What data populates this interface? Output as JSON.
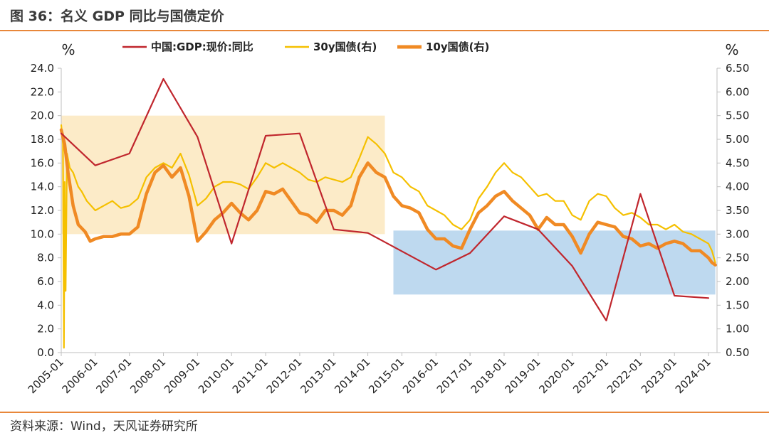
{
  "figure": {
    "title": "图 36：名义 GDP 同比与国债定价",
    "source": "资料来源：Wind，天风证券研究所"
  },
  "colors": {
    "gdp": "#c0262d",
    "y30": "#f5c000",
    "y10": "#f08a24",
    "rule": "#e8873a",
    "zone_high": "#fcebc8",
    "zone_low": "#bed9ef"
  },
  "chart_data": {
    "type": "line",
    "left_axis": {
      "unit": "%",
      "min": 0,
      "max": 24,
      "step": 2,
      "ticks": [
        "0.0",
        "2.0",
        "4.0",
        "6.0",
        "8.0",
        "10.0",
        "12.0",
        "14.0",
        "16.0",
        "18.0",
        "20.0",
        "22.0",
        "24.0"
      ]
    },
    "right_axis": {
      "unit": "%",
      "min": 0.5,
      "max": 6.5,
      "step": 0.5,
      "ticks": [
        "0.50",
        "1.00",
        "1.50",
        "2.00",
        "2.50",
        "3.00",
        "3.50",
        "4.00",
        "4.50",
        "5.00",
        "5.50",
        "6.00",
        "6.50"
      ]
    },
    "x_axis": {
      "min": 2005.0,
      "max": 2024.25,
      "ticks": [
        "2005-01",
        "2006-01",
        "2007-01",
        "2008-01",
        "2009-01",
        "2010-01",
        "2011-01",
        "2012-01",
        "2013-01",
        "2014-01",
        "2015-01",
        "2016-01",
        "2017-01",
        "2018-01",
        "2019-01",
        "2020-01",
        "2021-01",
        "2022-01",
        "2023-01",
        "2024-01"
      ]
    },
    "legend": {
      "placement": "top-center"
    },
    "shaded_regions": [
      {
        "x": [
          2005.0,
          2014.5
        ],
        "y_left": [
          10.0,
          20.0
        ],
        "color_key": "zone_high"
      },
      {
        "x": [
          2014.75,
          2024.2
        ],
        "y_left": [
          4.9,
          10.3
        ],
        "color_key": "zone_low"
      }
    ],
    "series": [
      {
        "name": "中国:GDP:现价:同比",
        "axis": "left",
        "color_key": "gdp",
        "width": 2.2,
        "points": [
          [
            2005.0,
            18.5
          ],
          [
            2006.0,
            15.8
          ],
          [
            2007.0,
            16.8
          ],
          [
            2008.0,
            23.1
          ],
          [
            2009.0,
            18.2
          ],
          [
            2010.0,
            9.2
          ],
          [
            2011.0,
            18.3
          ],
          [
            2012.0,
            18.5
          ],
          [
            2013.0,
            10.4
          ],
          [
            2014.0,
            10.1
          ],
          [
            2016.0,
            7.0
          ],
          [
            2017.0,
            8.4
          ],
          [
            2018.0,
            11.5
          ],
          [
            2019.0,
            10.4
          ],
          [
            2020.0,
            7.3
          ],
          [
            2021.0,
            2.7
          ],
          [
            2022.0,
            13.4
          ],
          [
            2023.0,
            4.8
          ],
          [
            2024.0,
            4.6
          ]
        ]
      },
      {
        "name": "30y国债(右)",
        "axis": "right",
        "color_key": "y30",
        "width": 2.2,
        "points": [
          [
            2005.0,
            5.3
          ],
          [
            2005.05,
            4.9
          ],
          [
            2005.08,
            0.6
          ],
          [
            2005.1,
            4.1
          ],
          [
            2005.13,
            1.8
          ],
          [
            2005.17,
            4.7
          ],
          [
            2005.25,
            4.4
          ],
          [
            2005.35,
            4.3
          ],
          [
            2005.5,
            4.0
          ],
          [
            2005.6,
            3.9
          ],
          [
            2005.75,
            3.7
          ],
          [
            2006.0,
            3.5
          ],
          [
            2006.25,
            3.6
          ],
          [
            2006.5,
            3.7
          ],
          [
            2006.75,
            3.55
          ],
          [
            2007.0,
            3.6
          ],
          [
            2007.25,
            3.75
          ],
          [
            2007.5,
            4.2
          ],
          [
            2007.75,
            4.4
          ],
          [
            2008.0,
            4.5
          ],
          [
            2008.25,
            4.4
          ],
          [
            2008.5,
            4.7
          ],
          [
            2008.75,
            4.25
          ],
          [
            2009.0,
            3.6
          ],
          [
            2009.25,
            3.75
          ],
          [
            2009.5,
            4.0
          ],
          [
            2009.75,
            4.1
          ],
          [
            2010.0,
            4.1
          ],
          [
            2010.25,
            4.05
          ],
          [
            2010.5,
            3.95
          ],
          [
            2010.75,
            4.2
          ],
          [
            2011.0,
            4.5
          ],
          [
            2011.25,
            4.4
          ],
          [
            2011.5,
            4.5
          ],
          [
            2011.75,
            4.4
          ],
          [
            2012.0,
            4.3
          ],
          [
            2012.25,
            4.15
          ],
          [
            2012.5,
            4.1
          ],
          [
            2012.75,
            4.2
          ],
          [
            2013.0,
            4.15
          ],
          [
            2013.25,
            4.1
          ],
          [
            2013.5,
            4.2
          ],
          [
            2013.75,
            4.6
          ],
          [
            2014.0,
            5.05
          ],
          [
            2014.25,
            4.9
          ],
          [
            2014.5,
            4.7
          ],
          [
            2014.75,
            4.3
          ],
          [
            2015.0,
            4.2
          ],
          [
            2015.25,
            4.0
          ],
          [
            2015.5,
            3.9
          ],
          [
            2015.75,
            3.6
          ],
          [
            2016.0,
            3.5
          ],
          [
            2016.25,
            3.4
          ],
          [
            2016.5,
            3.2
          ],
          [
            2016.75,
            3.1
          ],
          [
            2017.0,
            3.3
          ],
          [
            2017.25,
            3.75
          ],
          [
            2017.5,
            4.0
          ],
          [
            2017.75,
            4.3
          ],
          [
            2018.0,
            4.5
          ],
          [
            2018.25,
            4.3
          ],
          [
            2018.5,
            4.2
          ],
          [
            2018.75,
            4.0
          ],
          [
            2019.0,
            3.8
          ],
          [
            2019.25,
            3.85
          ],
          [
            2019.5,
            3.7
          ],
          [
            2019.75,
            3.7
          ],
          [
            2020.0,
            3.4
          ],
          [
            2020.25,
            3.3
          ],
          [
            2020.5,
            3.7
          ],
          [
            2020.75,
            3.85
          ],
          [
            2021.0,
            3.8
          ],
          [
            2021.25,
            3.55
          ],
          [
            2021.5,
            3.4
          ],
          [
            2021.75,
            3.45
          ],
          [
            2022.0,
            3.35
          ],
          [
            2022.25,
            3.2
          ],
          [
            2022.5,
            3.2
          ],
          [
            2022.75,
            3.1
          ],
          [
            2023.0,
            3.2
          ],
          [
            2023.25,
            3.05
          ],
          [
            2023.5,
            3.0
          ],
          [
            2023.75,
            2.9
          ],
          [
            2024.0,
            2.8
          ],
          [
            2024.1,
            2.65
          ],
          [
            2024.2,
            2.4
          ]
        ]
      },
      {
        "name": "10y国债(右)",
        "axis": "right",
        "color_key": "y10",
        "width": 4.5,
        "points": [
          [
            2005.0,
            5.2
          ],
          [
            2005.1,
            4.9
          ],
          [
            2005.2,
            4.3
          ],
          [
            2005.35,
            3.6
          ],
          [
            2005.5,
            3.2
          ],
          [
            2005.7,
            3.05
          ],
          [
            2005.85,
            2.85
          ],
          [
            2006.0,
            2.9
          ],
          [
            2006.25,
            2.95
          ],
          [
            2006.5,
            2.95
          ],
          [
            2006.75,
            3.0
          ],
          [
            2007.0,
            3.0
          ],
          [
            2007.25,
            3.15
          ],
          [
            2007.5,
            3.85
          ],
          [
            2007.75,
            4.3
          ],
          [
            2008.0,
            4.45
          ],
          [
            2008.25,
            4.2
          ],
          [
            2008.5,
            4.4
          ],
          [
            2008.75,
            3.8
          ],
          [
            2009.0,
            2.85
          ],
          [
            2009.25,
            3.05
          ],
          [
            2009.5,
            3.3
          ],
          [
            2009.75,
            3.45
          ],
          [
            2010.0,
            3.65
          ],
          [
            2010.25,
            3.45
          ],
          [
            2010.5,
            3.3
          ],
          [
            2010.75,
            3.5
          ],
          [
            2011.0,
            3.9
          ],
          [
            2011.25,
            3.85
          ],
          [
            2011.5,
            3.95
          ],
          [
            2011.75,
            3.7
          ],
          [
            2012.0,
            3.45
          ],
          [
            2012.25,
            3.4
          ],
          [
            2012.5,
            3.25
          ],
          [
            2012.75,
            3.5
          ],
          [
            2013.0,
            3.5
          ],
          [
            2013.25,
            3.4
          ],
          [
            2013.5,
            3.6
          ],
          [
            2013.75,
            4.2
          ],
          [
            2014.0,
            4.5
          ],
          [
            2014.25,
            4.3
          ],
          [
            2014.5,
            4.2
          ],
          [
            2014.75,
            3.8
          ],
          [
            2015.0,
            3.6
          ],
          [
            2015.25,
            3.55
          ],
          [
            2015.5,
            3.45
          ],
          [
            2015.75,
            3.1
          ],
          [
            2016.0,
            2.9
          ],
          [
            2016.25,
            2.9
          ],
          [
            2016.5,
            2.75
          ],
          [
            2016.75,
            2.7
          ],
          [
            2017.0,
            3.1
          ],
          [
            2017.25,
            3.45
          ],
          [
            2017.5,
            3.6
          ],
          [
            2017.75,
            3.8
          ],
          [
            2018.0,
            3.9
          ],
          [
            2018.25,
            3.7
          ],
          [
            2018.5,
            3.55
          ],
          [
            2018.75,
            3.4
          ],
          [
            2019.0,
            3.1
          ],
          [
            2019.25,
            3.35
          ],
          [
            2019.5,
            3.2
          ],
          [
            2019.75,
            3.2
          ],
          [
            2020.0,
            2.95
          ],
          [
            2020.25,
            2.6
          ],
          [
            2020.5,
            3.0
          ],
          [
            2020.75,
            3.25
          ],
          [
            2021.0,
            3.2
          ],
          [
            2021.25,
            3.15
          ],
          [
            2021.5,
            2.95
          ],
          [
            2021.75,
            2.9
          ],
          [
            2022.0,
            2.75
          ],
          [
            2022.25,
            2.8
          ],
          [
            2022.5,
            2.7
          ],
          [
            2022.75,
            2.8
          ],
          [
            2023.0,
            2.85
          ],
          [
            2023.25,
            2.8
          ],
          [
            2023.5,
            2.65
          ],
          [
            2023.75,
            2.65
          ],
          [
            2024.0,
            2.5
          ],
          [
            2024.1,
            2.4
          ],
          [
            2024.2,
            2.35
          ]
        ]
      }
    ]
  }
}
